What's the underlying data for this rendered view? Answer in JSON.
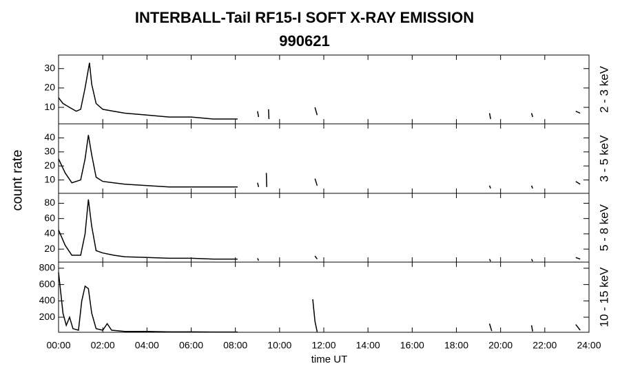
{
  "title": "INTERBALL-Tail RF15-I SOFT X-RAY EMISSION",
  "subtitle": "990621",
  "ylabel": "count rate",
  "xlabel": "time UT",
  "chart_data": [
    {
      "type": "line",
      "band_label": "2 - 3 keV",
      "color": "#000000",
      "xlim": [
        0,
        24
      ],
      "ylim": [
        1.5,
        37
      ],
      "yticks": [
        10,
        20,
        30
      ],
      "x": [
        0,
        0.2,
        0.5,
        0.8,
        1.0,
        1.2,
        1.4,
        1.5,
        1.7,
        2.0,
        2.5,
        3,
        4,
        5,
        6,
        7,
        8,
        8.1,
        null,
        9.0,
        9.05,
        null,
        9.5,
        9.52,
        null,
        11.6,
        11.7,
        null,
        19.5,
        19.55,
        null,
        21.4,
        21.45,
        null,
        23.4,
        23.6
      ],
      "values": [
        15,
        12,
        10,
        8,
        9,
        20,
        33,
        22,
        12,
        9,
        8,
        7,
        6,
        5,
        5,
        4,
        4,
        4,
        null,
        8,
        5,
        null,
        9,
        4,
        null,
        10,
        6,
        null,
        7,
        4,
        null,
        7,
        5,
        null,
        8,
        7
      ]
    },
    {
      "type": "line",
      "band_label": "3 - 5 keV",
      "color": "#000000",
      "xlim": [
        0,
        24
      ],
      "ylim": [
        0.5,
        50
      ],
      "yticks": [
        10,
        20,
        30,
        40
      ],
      "x": [
        0,
        0.3,
        0.6,
        1.0,
        1.2,
        1.35,
        1.5,
        1.7,
        2.0,
        2.5,
        3,
        4,
        5,
        6,
        7,
        8.1,
        null,
        9.0,
        9.05,
        null,
        9.4,
        9.42,
        null,
        11.6,
        11.7,
        null,
        19.5,
        19.55,
        null,
        21.4,
        21.45,
        null,
        23.4,
        23.6
      ],
      "values": [
        25,
        15,
        8,
        10,
        25,
        42,
        28,
        12,
        9,
        8,
        7,
        6,
        5,
        5,
        5,
        5,
        null,
        8,
        5,
        null,
        15,
        5,
        null,
        11,
        6,
        null,
        6,
        4,
        null,
        6,
        4,
        null,
        9,
        7
      ]
    },
    {
      "type": "line",
      "band_label": "5 - 8 keV",
      "color": "#000000",
      "xlim": [
        0,
        24
      ],
      "ylim": [
        3,
        93
      ],
      "yticks": [
        20,
        40,
        60,
        80
      ],
      "x": [
        0,
        0.3,
        0.6,
        1.0,
        1.2,
        1.35,
        1.5,
        1.7,
        2.0,
        2.5,
        3,
        4,
        5,
        6,
        7,
        8.1,
        null,
        9.0,
        9.05,
        null,
        11.6,
        11.7,
        null,
        19.5,
        19.55,
        null,
        21.4,
        21.45,
        null,
        23.4,
        23.6
      ],
      "values": [
        45,
        25,
        12,
        12,
        40,
        85,
        50,
        18,
        15,
        12,
        10,
        9,
        8,
        8,
        7,
        7,
        null,
        8,
        5,
        null,
        11,
        7,
        null,
        7,
        4,
        null,
        7,
        4,
        null,
        9,
        7
      ]
    },
    {
      "type": "line",
      "band_label": "10 - 15 keV",
      "color": "#000000",
      "xlim": [
        0,
        24
      ],
      "ylim": [
        15,
        875
      ],
      "yticks": [
        200,
        400,
        600,
        800
      ],
      "xticks": [
        {
          "value": 0,
          "label": "00:00"
        },
        {
          "value": 2,
          "label": "02:00"
        },
        {
          "value": 4,
          "label": "04:00"
        },
        {
          "value": 6,
          "label": "06:00"
        },
        {
          "value": 8,
          "label": "08:00"
        },
        {
          "value": 10,
          "label": "10:00"
        },
        {
          "value": 12,
          "label": "12:00"
        },
        {
          "value": 14,
          "label": "14:00"
        },
        {
          "value": 16,
          "label": "16:00"
        },
        {
          "value": 18,
          "label": "18:00"
        },
        {
          "value": 20,
          "label": "20:00"
        },
        {
          "value": 22,
          "label": "22:00"
        },
        {
          "value": 24,
          "label": "24:00"
        }
      ],
      "x": [
        0,
        0.1,
        0.2,
        0.35,
        0.5,
        0.65,
        0.9,
        1.05,
        1.2,
        1.35,
        1.5,
        1.7,
        2.0,
        2.2,
        2.4,
        3,
        4,
        5,
        6,
        7,
        8.1,
        null,
        11.5,
        11.6,
        11.7,
        null,
        19.5,
        19.6,
        null,
        21.4,
        21.45,
        null,
        23.4,
        23.6
      ],
      "values": [
        750,
        500,
        250,
        100,
        200,
        60,
        40,
        400,
        580,
        550,
        250,
        60,
        40,
        120,
        40,
        25,
        25,
        20,
        20,
        18,
        18,
        null,
        420,
        150,
        20,
        null,
        120,
        30,
        null,
        100,
        25,
        null,
        110,
        40
      ]
    }
  ]
}
